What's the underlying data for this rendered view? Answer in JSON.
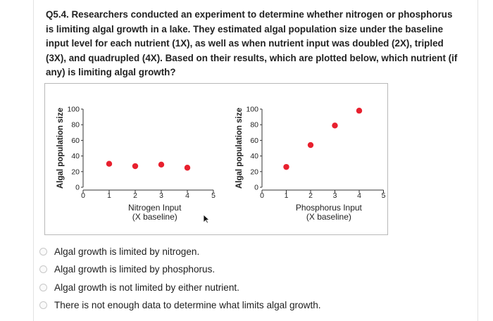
{
  "question": "Q5.4. Researchers conducted an experiment to determine whether nitrogen or phosphorus is limiting algal growth in a lake. They estimated algal population size under the baseline input level for each nutrient (1X), as well as when nutrient input was doubled (2X), tripled (3X), and quadrupled (4X). Based on their results, which are plotted below, which nutrient (if any) is limiting algal growth?",
  "chart_data": [
    {
      "type": "scatter",
      "title": "",
      "xlabel": "Nitrogen Input",
      "xlabel2": "(X baseline)",
      "ylabel": "Algal population size",
      "xlim": [
        0,
        5
      ],
      "ylim": [
        0,
        100
      ],
      "xticks": [
        "0",
        "1",
        "2",
        "3",
        "4",
        "5"
      ],
      "yticks": [
        "0",
        "20",
        "40",
        "60",
        "80",
        "100"
      ],
      "x": [
        1,
        2,
        3,
        4
      ],
      "y": [
        30,
        27,
        29,
        25
      ],
      "grid": false,
      "point_color": "#e8202e"
    },
    {
      "type": "scatter",
      "title": "",
      "xlabel": "Phosphorus Input",
      "xlabel2": "(X baseline)",
      "ylabel": "Algal population size",
      "xlim": [
        0,
        5
      ],
      "ylim": [
        0,
        100
      ],
      "xticks": [
        "0",
        "1",
        "2",
        "3",
        "4",
        "5"
      ],
      "yticks": [
        "0",
        "20",
        "40",
        "60",
        "80",
        "100"
      ],
      "x": [
        1,
        2,
        3,
        4
      ],
      "y": [
        26,
        54,
        79,
        98
      ],
      "grid": false,
      "point_color": "#e8202e"
    }
  ],
  "options": [
    "Algal growth is limited by nitrogen.",
    "Algal growth is limited by phosphorus.",
    "Algal growth is not limited by either nutrient.",
    "There is not enough data to determine what limits algal growth."
  ]
}
